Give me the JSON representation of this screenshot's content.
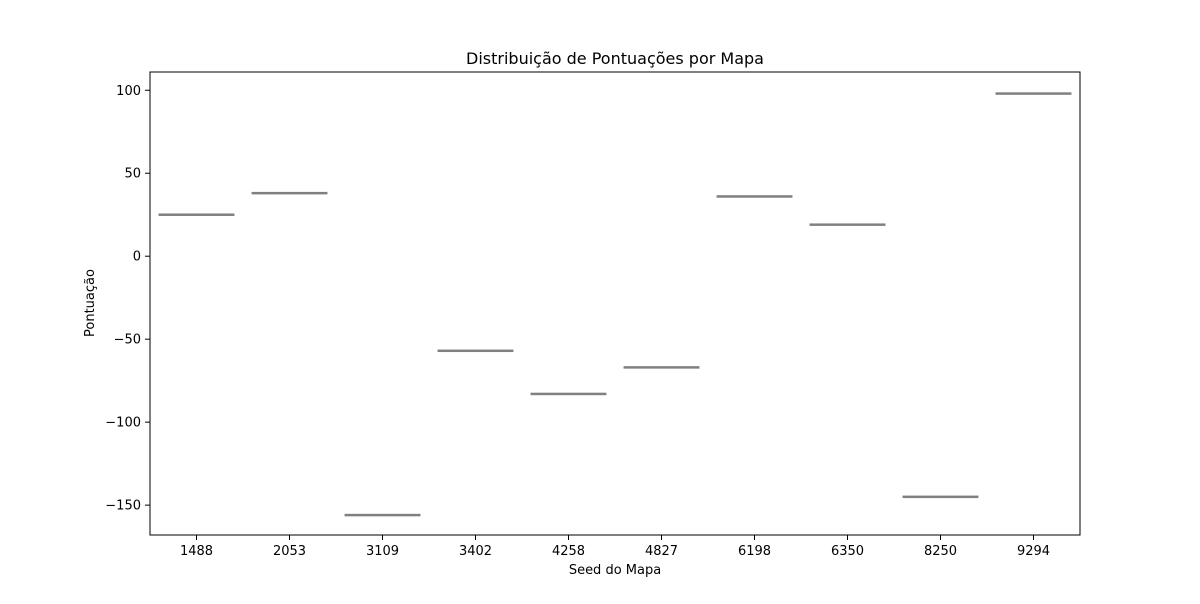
{
  "chart_data": {
    "type": "box",
    "title": "Distribuição de Pontuações por Mapa",
    "xlabel": "Seed do Mapa",
    "ylabel": "Pontuação",
    "categories": [
      "1488",
      "2053",
      "3109",
      "3402",
      "4258",
      "4827",
      "6198",
      "6350",
      "8250",
      "9294"
    ],
    "values": [
      25,
      38,
      -156,
      -57,
      -83,
      -67,
      36,
      19,
      -145,
      98
    ],
    "ylim": [
      -168,
      111
    ],
    "yticks": [
      100,
      50,
      0,
      -50,
      -100,
      -150
    ],
    "ytick_labels": [
      "100",
      "50",
      "0",
      "−50",
      "−100",
      "−150"
    ],
    "grid": false,
    "colors": {
      "box_line": "#808080",
      "axis": "#000000",
      "background": "#ffffff"
    }
  }
}
